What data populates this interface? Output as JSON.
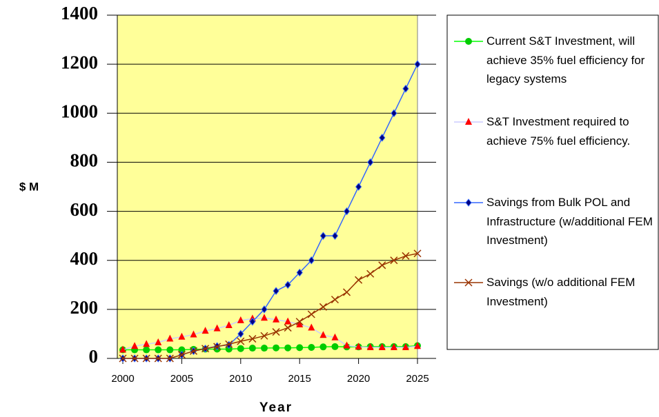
{
  "chart_data": {
    "type": "line",
    "x_label": "Year",
    "y_label": "$ M",
    "x": [
      2000,
      2001,
      2002,
      2003,
      2004,
      2005,
      2006,
      2007,
      2008,
      2009,
      2010,
      2011,
      2012,
      2013,
      2014,
      2015,
      2016,
      2017,
      2018,
      2019,
      2020,
      2021,
      2022,
      2023,
      2024,
      2025
    ],
    "xlim": [
      2000,
      2025
    ],
    "xticks": [
      2000,
      2005,
      2010,
      2015,
      2020,
      2025
    ],
    "ylim": [
      0,
      1400
    ],
    "yticks": [
      0,
      200,
      400,
      600,
      800,
      1000,
      1200,
      1400
    ],
    "grid": true,
    "legend": "right",
    "series": [
      {
        "name": "Current S&T Investment, will achieve 35% fuel efficiency for legacy systems",
        "color": "#00ff00",
        "marker": "circle",
        "marker_color": "#00cc00",
        "values": [
          35,
          35,
          35,
          35,
          35,
          35,
          37,
          38,
          38,
          38,
          40,
          42,
          42,
          43,
          43,
          44,
          45,
          47,
          48,
          47,
          47,
          48,
          48,
          48,
          48,
          52
        ]
      },
      {
        "name": "S&T Investment required to achieve 75% fuel efficiency.",
        "color": "#ccccff",
        "marker": "triangle",
        "marker_color": "#ff0000",
        "values": [
          35,
          50,
          58,
          65,
          80,
          88,
          97,
          112,
          122,
          135,
          155,
          162,
          165,
          158,
          150,
          138,
          125,
          95,
          85,
          52,
          47,
          45,
          45,
          45,
          45,
          50
        ]
      },
      {
        "name": "Savings from Bulk POL and Infrastructure (w/additional FEM Investment)",
        "color": "#3366ff",
        "marker": "diamond",
        "marker_color": "#000080",
        "values": [
          0,
          0,
          0,
          0,
          0,
          15,
          30,
          40,
          50,
          55,
          100,
          150,
          200,
          275,
          300,
          350,
          400,
          500,
          500,
          600,
          700,
          800,
          900,
          1000,
          1100,
          1200
        ]
      },
      {
        "name": "Savings (w/o additional FEM Investment)",
        "color": "#993300",
        "marker": "x",
        "marker_color": "#993300",
        "values": [
          0,
          0,
          0,
          0,
          0,
          15,
          30,
          40,
          48,
          58,
          70,
          80,
          92,
          108,
          125,
          150,
          180,
          210,
          240,
          270,
          320,
          345,
          380,
          400,
          418,
          428
        ]
      }
    ]
  }
}
